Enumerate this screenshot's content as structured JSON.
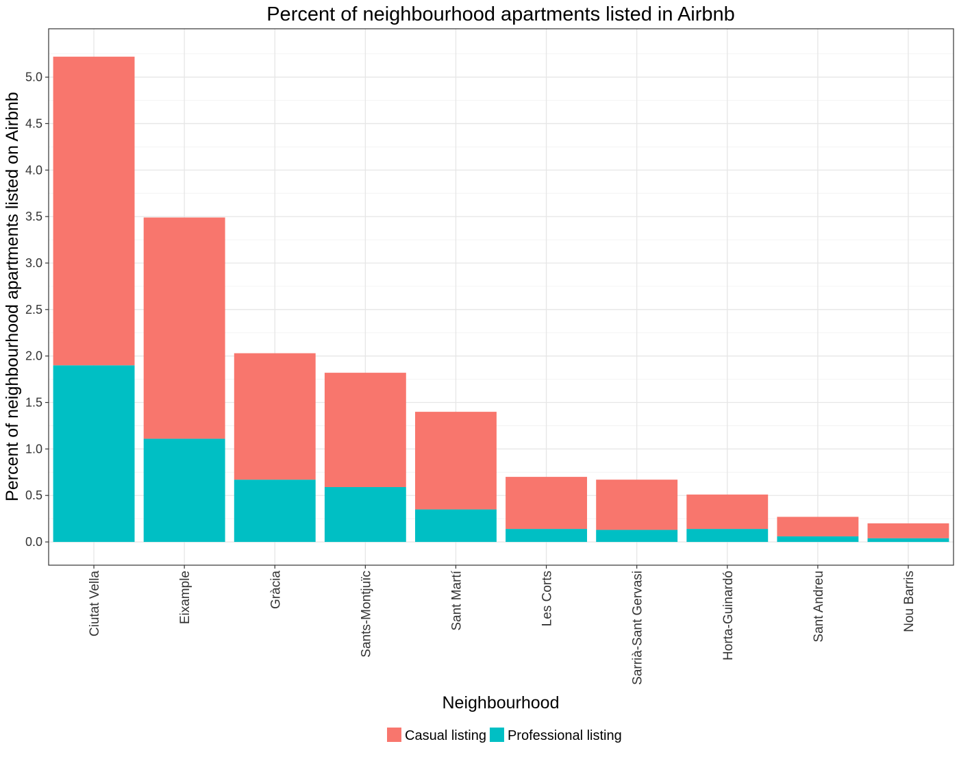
{
  "chart_data": {
    "type": "bar",
    "stacked": true,
    "title": "Percent of neighbourhood apartments listed in Airbnb",
    "xlabel": "Neighbourhood",
    "ylabel": "Percent of neighbourhood apartments listed on Airbnb",
    "ylim": [
      -0.25,
      5.52
    ],
    "yticks": [
      "0.0",
      "0.5",
      "1.0",
      "1.5",
      "2.0",
      "2.5",
      "3.0",
      "3.5",
      "4.0",
      "4.5",
      "5.0"
    ],
    "grid": true,
    "legend_position": "bottom",
    "categories": [
      "Ciutat Vella",
      "Eixample",
      "Gràcia",
      "Sants-Montjuïc",
      "Sant Martí",
      "Les Corts",
      "Sarrià-Sant Gervasi",
      "Horta-Guinardó",
      "Sant Andreu",
      "Nou Barris"
    ],
    "series": [
      {
        "name": "Professional listing",
        "color": "#00BFC4",
        "values": [
          1.9,
          1.11,
          0.67,
          0.59,
          0.35,
          0.14,
          0.13,
          0.14,
          0.06,
          0.04
        ]
      },
      {
        "name": "Casual listing",
        "color": "#F8766D",
        "values": [
          3.32,
          2.38,
          1.36,
          1.23,
          1.05,
          0.56,
          0.54,
          0.37,
          0.21,
          0.16
        ]
      }
    ],
    "legend": [
      "Casual listing",
      "Professional listing"
    ]
  }
}
